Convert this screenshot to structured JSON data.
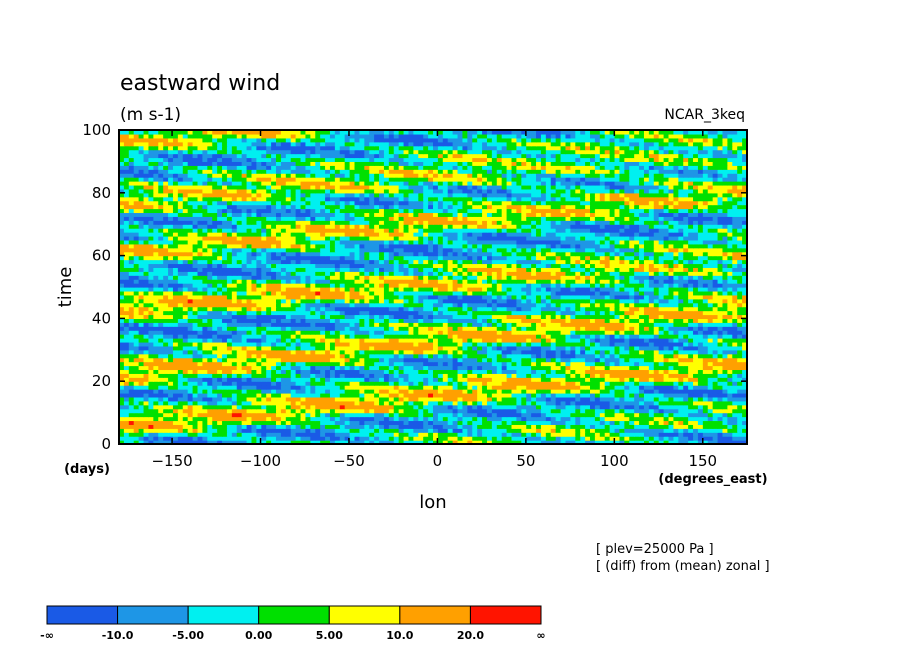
{
  "chart_data": {
    "type": "heatmap",
    "title": "eastward wind",
    "units": "(m s-1)",
    "dataset": "NCAR_3keq",
    "xlabel": "lon",
    "ylabel": "time",
    "x_unit_label": "(degrees_east)",
    "y_unit_label": "(days)",
    "xlim": [
      -180,
      175
    ],
    "ylim": [
      0,
      100
    ],
    "xticks": [
      -150,
      -100,
      -50,
      0,
      50,
      100,
      150
    ],
    "yticks": [
      0,
      20,
      40,
      60,
      80,
      100
    ],
    "annotations": [
      "[ plev=25000 Pa ]",
      "[ (diff) from (mean) zonal ]"
    ],
    "colorbar": {
      "colors": [
        "#1a5ae6",
        "#1e96e6",
        "#00f0f0",
        "#00e000",
        "#ffff00",
        "#ffa000",
        "#ff1400"
      ],
      "bounds": [
        "-∞",
        "-10.0",
        "-5.00",
        "0.00",
        "5.00",
        "10.0",
        "20.0",
        "∞"
      ]
    },
    "waves": [
      {
        "y0": 5,
        "slope": 0.055,
        "amp": 11
      },
      {
        "y0": 21,
        "slope": 0.06,
        "amp": 12
      },
      {
        "y0": 43,
        "slope": 0.04,
        "amp": 10
      },
      {
        "y0": 61,
        "slope": 0.05,
        "amp": 8
      },
      {
        "y0": 76,
        "slope": 0.045,
        "amp": 9
      },
      {
        "y0": 95,
        "slope": 0.05,
        "amp": 8
      }
    ]
  }
}
